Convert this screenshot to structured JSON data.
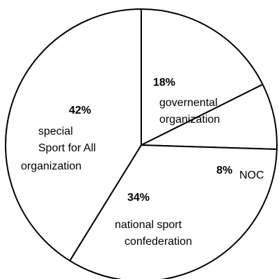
{
  "chart_data": {
    "type": "pie",
    "start_angle_deg": 0,
    "direction": "clockwise",
    "slices": [
      {
        "percent_label": "18%",
        "value": 18,
        "label_lines": [
          "governental",
          "organization"
        ]
      },
      {
        "percent_label": "8%",
        "value": 8,
        "label_lines": [
          "NOC"
        ]
      },
      {
        "percent_label": "34%",
        "value": 34,
        "label_lines": [
          "national sport",
          "confederation"
        ]
      },
      {
        "percent_label": "42%",
        "value": 42,
        "label_lines": [
          "special",
          "Sport for All",
          "organization"
        ]
      }
    ],
    "fill_color": "#ffffff",
    "stroke_color": "#000000"
  }
}
